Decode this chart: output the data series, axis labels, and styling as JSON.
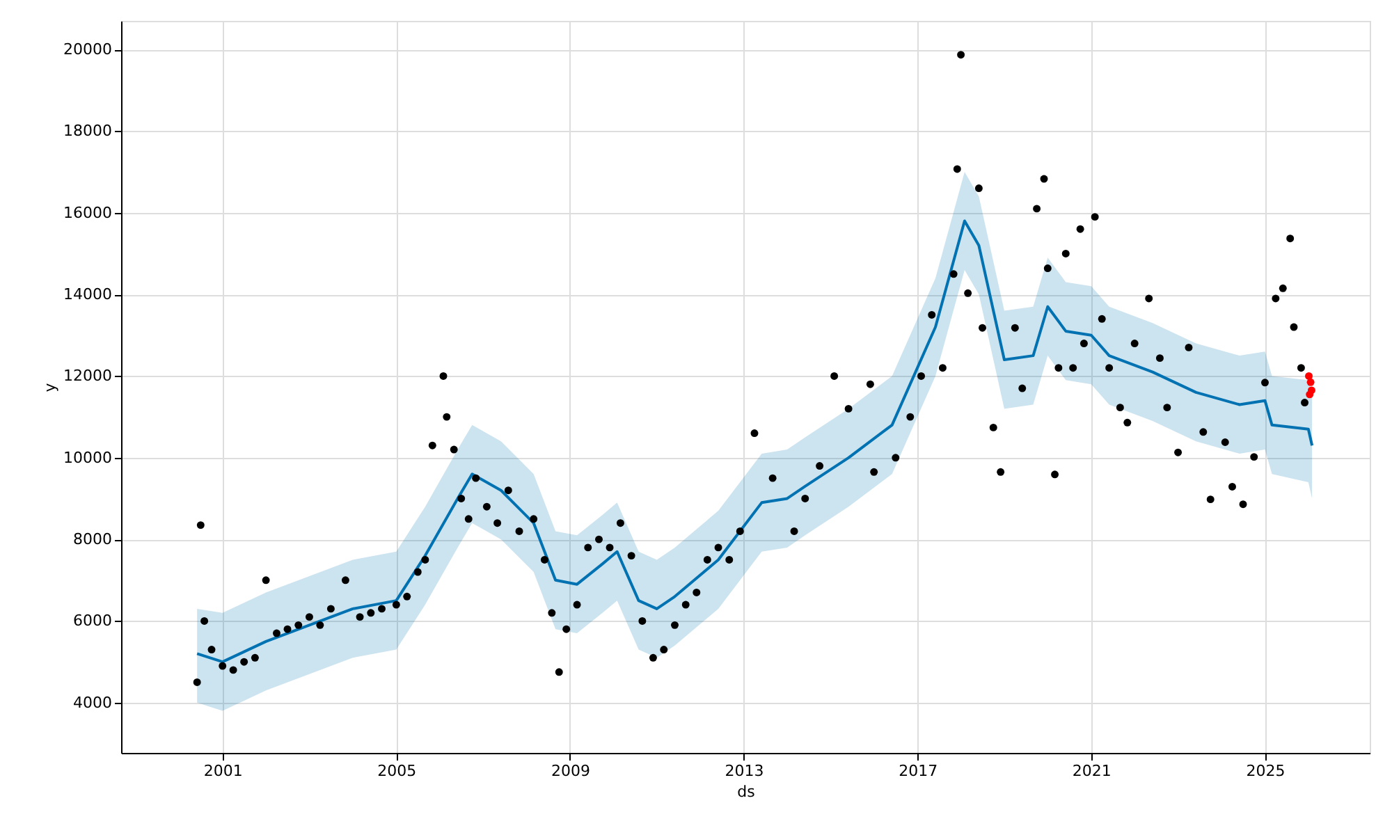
{
  "chart_data": {
    "type": "scatter",
    "xlabel": "ds",
    "ylabel": "y",
    "grid": true,
    "marker": "circle",
    "xlim": [
      "1998-09",
      "2027-06"
    ],
    "ylim": [
      2770,
      20700
    ],
    "xticks": [
      "2001",
      "2005",
      "2009",
      "2013",
      "2017",
      "2021",
      "2025"
    ],
    "yticks": [
      4000,
      6000,
      8000,
      10000,
      12000,
      14000,
      16000,
      18000,
      20000
    ],
    "series": [
      {
        "type": "line",
        "marker": "none",
        "color": "#0072b2",
        "x": [
          "2000-06",
          "2001-01",
          "2002-01",
          "2003-01",
          "2004-01",
          "2005-01",
          "2005-09",
          "2006-06",
          "2006-10",
          "2007-06",
          "2008-03",
          "2008-09",
          "2009-03",
          "2009-10",
          "2010-02",
          "2010-08",
          "2011-01",
          "2011-06",
          "2012-06",
          "2013-06",
          "2014-01",
          "2014-06",
          "2015-06",
          "2016-06",
          "2017-06",
          "2018-02",
          "2018-06",
          "2019-01",
          "2019-09",
          "2020-01",
          "2020-06",
          "2021-01",
          "2021-06",
          "2022-06",
          "2023-06",
          "2024-06",
          "2025-01",
          "2025-03",
          "2026-01",
          "2026-02"
        ],
        "values": [
          5200,
          5000,
          5500,
          5900,
          6300,
          6500,
          7600,
          9000,
          9600,
          9200,
          8400,
          7000,
          6900,
          7400,
          7700,
          6500,
          6300,
          6600,
          7500,
          8900,
          9000,
          9300,
          10000,
          10800,
          13200,
          15800,
          15200,
          12400,
          12500,
          13700,
          13100,
          13000,
          12500,
          12100,
          11600,
          11300,
          11400,
          10800,
          10700,
          10300
        ],
        "lower": [
          4000,
          3800,
          4300,
          4700,
          5100,
          5300,
          6400,
          7800,
          8400,
          8000,
          7200,
          5800,
          5700,
          6200,
          6500,
          5300,
          5100,
          5400,
          6300,
          7700,
          7800,
          8100,
          8800,
          9600,
          12000,
          14600,
          14000,
          11200,
          11300,
          12500,
          11900,
          11800,
          11300,
          10900,
          10400,
          10100,
          10200,
          9600,
          9400,
          9000
        ],
        "upper": [
          6300,
          6200,
          6700,
          7100,
          7500,
          7700,
          8800,
          10200,
          10800,
          10400,
          9600,
          8200,
          8100,
          8600,
          8900,
          7700,
          7500,
          7800,
          8700,
          10100,
          10200,
          10500,
          11200,
          12000,
          14400,
          17000,
          16400,
          13600,
          13700,
          14900,
          14300,
          14200,
          13700,
          13300,
          12800,
          12500,
          12600,
          12000,
          11900,
          11600
        ]
      },
      {
        "color": "#000000",
        "x": [
          "2000-06",
          "2000-07",
          "2000-08",
          "2000-10",
          "2001-01",
          "2001-04",
          "2001-07",
          "2001-10",
          "2002-01",
          "2002-04",
          "2002-07",
          "2002-10",
          "2003-01",
          "2003-04",
          "2003-07",
          "2003-11",
          "2004-03",
          "2004-06",
          "2004-09",
          "2005-01",
          "2005-04",
          "2005-07",
          "2005-09",
          "2005-11",
          "2006-02",
          "2006-03",
          "2006-05",
          "2006-07",
          "2006-09",
          "2006-11",
          "2007-02",
          "2007-05",
          "2007-08",
          "2007-11",
          "2008-03",
          "2008-06",
          "2008-08",
          "2008-10",
          "2008-12",
          "2009-03",
          "2009-06",
          "2009-09",
          "2009-12",
          "2010-03",
          "2010-06",
          "2010-09",
          "2010-12",
          "2011-03",
          "2011-06",
          "2011-09",
          "2011-12",
          "2012-03",
          "2012-06",
          "2012-09",
          "2012-12",
          "2013-04",
          "2013-09",
          "2014-03",
          "2014-06",
          "2014-10",
          "2015-02",
          "2015-06",
          "2015-12",
          "2016-01",
          "2016-07",
          "2016-11",
          "2017-02",
          "2017-05",
          "2017-08",
          "2017-11",
          "2017-12",
          "2018-01",
          "2018-03",
          "2018-06",
          "2018-07",
          "2018-10",
          "2018-12",
          "2019-04",
          "2019-06",
          "2019-10",
          "2019-12",
          "2020-01",
          "2020-03",
          "2020-04",
          "2020-06",
          "2020-08",
          "2020-10",
          "2020-11",
          "2021-02",
          "2021-04",
          "2021-06",
          "2021-09",
          "2021-11",
          "2022-01",
          "2022-05",
          "2022-08",
          "2022-10",
          "2023-01",
          "2023-04",
          "2023-08",
          "2023-10",
          "2024-02",
          "2024-04",
          "2024-07",
          "2024-10",
          "2025-01",
          "2025-04",
          "2025-06",
          "2025-08",
          "2025-09",
          "2025-11",
          "2025-12"
        ],
        "values": [
          4500,
          8350,
          6000,
          5300,
          4900,
          4800,
          5000,
          5100,
          7000,
          5700,
          5800,
          5900,
          6100,
          5900,
          6300,
          7000,
          6100,
          6200,
          6300,
          6400,
          6600,
          7200,
          7500,
          10300,
          12000,
          11000,
          10200,
          9000,
          8500,
          9500,
          8800,
          8400,
          9200,
          8200,
          8500,
          7500,
          6200,
          4750,
          5800,
          6400,
          7800,
          8000,
          7800,
          8400,
          7600,
          6000,
          5100,
          5300,
          5900,
          6400,
          6700,
          7500,
          7800,
          7500,
          8200,
          10600,
          9500,
          8200,
          9000,
          9800,
          12000,
          11200,
          11800,
          9650,
          10000,
          11000,
          12000,
          13500,
          12200,
          14500,
          17070,
          19870,
          14030,
          16600,
          13180,
          10740,
          9650,
          13180,
          11700,
          16100,
          16830,
          14640,
          9590,
          12200,
          15000,
          12200,
          15600,
          12800,
          15900,
          13400,
          12200,
          11230,
          10860,
          12800,
          13900,
          12440,
          11230,
          10130,
          12700,
          10630,
          8980,
          10380,
          9290,
          8860,
          10020,
          11840,
          13900,
          14150,
          15370,
          13200,
          12200,
          11350
        ]
      },
      {
        "color": "#ff0000",
        "x": [
          "2026-01-05",
          "2026-01-12",
          "2026-01-20",
          "2026-01-28"
        ],
        "values": [
          12000,
          11550,
          11850,
          11650
        ]
      }
    ]
  }
}
